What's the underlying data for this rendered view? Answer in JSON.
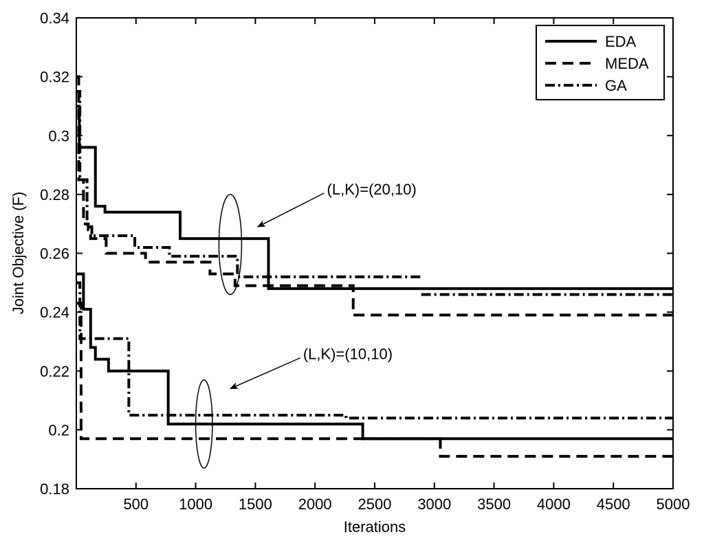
{
  "chart_data": {
    "type": "line",
    "step": true,
    "xlabel": "Iterations",
    "ylabel": "Joint Objective (F)",
    "xlim": [
      0,
      5000
    ],
    "ylim": [
      0.18,
      0.34
    ],
    "xticks": [
      500,
      1000,
      1500,
      2000,
      2500,
      3000,
      3500,
      4000,
      4500,
      5000
    ],
    "yticks": [
      0.18,
      0.2,
      0.22,
      0.24,
      0.26,
      0.28,
      0.3,
      0.32,
      0.34
    ],
    "xtick_labels": [
      "500",
      "1000",
      "1500",
      "2000",
      "2500",
      "3000",
      "3500",
      "4000",
      "4500",
      "5000"
    ],
    "ytick_labels": [
      "0.18",
      "0.2",
      "0.22",
      "0.24",
      "0.26",
      "0.28",
      "0.3",
      "0.32",
      "0.34"
    ],
    "grid": false,
    "legend_position": "top-right",
    "legend": [
      {
        "name": "EDA",
        "style": "solid"
      },
      {
        "name": "MEDA",
        "style": "dashed"
      },
      {
        "name": "GA",
        "style": "dashdot"
      }
    ],
    "annotations": [
      {
        "text": "(L,K)=(20,10)",
        "arrow_to_x": 1520,
        "arrow_to_y": 0.269,
        "text_x": 2100,
        "text_y": 0.28,
        "ellipse_center": [
          1290,
          0.263
        ],
        "ellipse_radius": [
          95,
          0.017
        ]
      },
      {
        "text": "(L,K)=(10,10)",
        "arrow_to_x": 1290,
        "arrow_to_y": 0.214,
        "text_x": 1900,
        "text_y": 0.224,
        "ellipse_center": [
          1070,
          0.202
        ],
        "ellipse_radius": [
          70,
          0.015
        ]
      }
    ],
    "series": [
      {
        "name": "EDA",
        "group": "(L,K)=(20,10)",
        "style": "solid",
        "points": [
          [
            0,
            0.31
          ],
          [
            25,
            0.296
          ],
          [
            160,
            0.276
          ],
          [
            240,
            0.274
          ],
          [
            870,
            0.265
          ],
          [
            1610,
            0.248
          ],
          [
            5000,
            0.248
          ]
        ]
      },
      {
        "name": "MEDA",
        "group": "(L,K)=(20,10)",
        "style": "dashed",
        "points": [
          [
            0,
            0.32
          ],
          [
            20,
            0.285
          ],
          [
            60,
            0.27
          ],
          [
            100,
            0.268
          ],
          [
            120,
            0.265
          ],
          [
            250,
            0.26
          ],
          [
            580,
            0.257
          ],
          [
            1120,
            0.253
          ],
          [
            1330,
            0.249
          ],
          [
            2320,
            0.239
          ],
          [
            5000,
            0.239
          ]
        ]
      },
      {
        "name": "GA",
        "group": "(L,K)=(20,10)",
        "style": "dashdot",
        "points": [
          [
            0,
            0.315
          ],
          [
            30,
            0.285
          ],
          [
            90,
            0.269
          ],
          [
            130,
            0.266
          ],
          [
            490,
            0.262
          ],
          [
            780,
            0.259
          ],
          [
            1350,
            0.252
          ],
          [
            2890,
            0.252
          ]
        ],
        "continuation": [
          [
            2890,
            0.246
          ],
          [
            5000,
            0.246
          ]
        ]
      },
      {
        "name": "EDA",
        "group": "(L,K)=(10,10)",
        "style": "solid",
        "points": [
          [
            0,
            0.253
          ],
          [
            60,
            0.241
          ],
          [
            120,
            0.228
          ],
          [
            160,
            0.224
          ],
          [
            270,
            0.22
          ],
          [
            770,
            0.202
          ],
          [
            2400,
            0.197
          ],
          [
            5000,
            0.197
          ]
        ]
      },
      {
        "name": "MEDA",
        "group": "(L,K)=(10,10)",
        "style": "dashed",
        "points": [
          [
            0,
            0.243
          ],
          [
            40,
            0.197
          ],
          [
            3050,
            0.191
          ],
          [
            5000,
            0.191
          ]
        ],
        "extra_segment": [
          [
            2400,
            0.197
          ],
          [
            3050,
            0.197
          ]
        ]
      },
      {
        "name": "GA",
        "group": "(L,K)=(10,10)",
        "style": "dashdot",
        "points": [
          [
            0,
            0.25
          ],
          [
            30,
            0.231
          ],
          [
            440,
            0.205
          ],
          [
            2260,
            0.204
          ],
          [
            5000,
            0.204
          ]
        ]
      }
    ]
  }
}
